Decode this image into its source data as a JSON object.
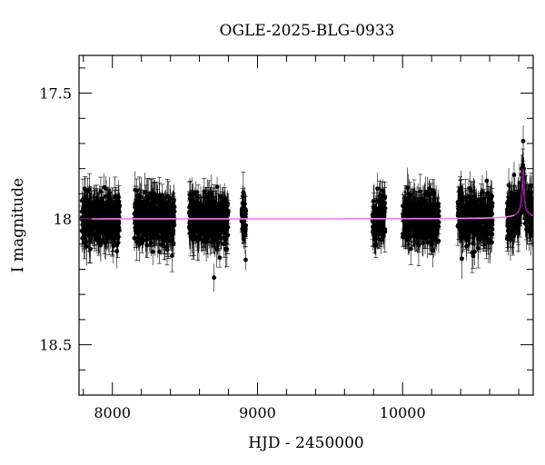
{
  "chart_data": {
    "type": "scatter",
    "title": "OGLE-2025-BLG-0933",
    "xlabel": "HJD - 2450000",
    "ylabel": "I magnitude",
    "xlim": [
      7770,
      10900
    ],
    "ylim": [
      18.7,
      17.35
    ],
    "y_inverted": true,
    "x_ticks": [
      8000,
      9000,
      10000
    ],
    "x_tick_labels": [
      "8000",
      "9000",
      "10000"
    ],
    "y_ticks": [
      17.5,
      18,
      18.5
    ],
    "y_tick_labels": [
      "17.5",
      "18",
      "18.5"
    ],
    "grid": false,
    "legend": "none",
    "baseline_mag": 18.0,
    "peak": {
      "t0": 10830,
      "peak_mag": 17.8,
      "width_days": 14
    },
    "observing_seasons": [
      {
        "start": 7790,
        "end": 8050
      },
      {
        "start": 8150,
        "end": 8430
      },
      {
        "start": 8530,
        "end": 8800
      },
      {
        "start": 8890,
        "end": 8920
      },
      {
        "start": 9790,
        "end": 9880
      },
      {
        "start": 10000,
        "end": 10250
      },
      {
        "start": 10380,
        "end": 10620
      },
      {
        "start": 10720,
        "end": 10900
      }
    ],
    "point_scatter_mag": 0.045,
    "typical_error_mag": 0.06,
    "colors": {
      "points": "#000000",
      "model": "#ee82ee",
      "peak_model": "#800080"
    }
  }
}
